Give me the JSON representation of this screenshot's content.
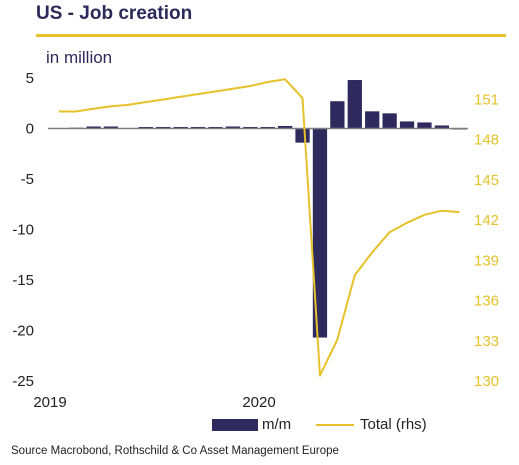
{
  "header": {
    "title": "US - Job creation",
    "unit": "in million"
  },
  "source": "Source Macrobond, Rothschild & Co Asset Management Europe",
  "legend": {
    "bars_label": "m/m",
    "line_label": "Total (rhs)"
  },
  "colors": {
    "bars": "#2e2a5e",
    "line": "#e6c12a",
    "accent_rule": "#e6c12a",
    "title": "#2b2a5a",
    "zero_line": "#808080"
  },
  "chart_data": {
    "type": "bar",
    "x_start": "2019-01",
    "x_labels": [
      "2019",
      "2020"
    ],
    "left_axis": {
      "ticks": [
        5,
        0,
        -5,
        -10,
        -15,
        -20,
        -25
      ],
      "ylim": [
        -25,
        5
      ]
    },
    "right_axis": {
      "ticks": [
        151,
        148,
        145,
        142,
        139,
        136,
        133,
        130
      ],
      "ylim": [
        130,
        152.6
      ]
    },
    "series": [
      {
        "name": "m/m",
        "type": "bar",
        "axis": "left",
        "x": [
          "2019-01",
          "2019-02",
          "2019-03",
          "2019-04",
          "2019-05",
          "2019-06",
          "2019-07",
          "2019-08",
          "2019-09",
          "2019-10",
          "2019-11",
          "2019-12",
          "2020-01",
          "2020-02",
          "2020-03",
          "2020-04",
          "2020-05",
          "2020-06",
          "2020-07",
          "2020-08",
          "2020-09",
          "2020-10",
          "2020-11",
          "2020-12"
        ],
        "values": [
          0.05,
          0.08,
          0.2,
          0.2,
          0.05,
          0.15,
          0.15,
          0.15,
          0.15,
          0.15,
          0.2,
          0.15,
          0.15,
          0.25,
          -1.4,
          -20.7,
          2.7,
          4.8,
          1.7,
          1.5,
          0.7,
          0.6,
          0.3,
          -0.1
        ]
      },
      {
        "name": "Total (rhs)",
        "type": "line",
        "axis": "right",
        "x": [
          "2019-01",
          "2019-02",
          "2019-03",
          "2019-04",
          "2019-05",
          "2019-06",
          "2019-07",
          "2019-08",
          "2019-09",
          "2019-10",
          "2019-11",
          "2019-12",
          "2020-01",
          "2020-02",
          "2020-03",
          "2020-04",
          "2020-05",
          "2020-06",
          "2020-07",
          "2020-08",
          "2020-09",
          "2020-10",
          "2020-11",
          "2020-12"
        ],
        "values": [
          150.1,
          150.1,
          150.3,
          150.5,
          150.6,
          150.8,
          151.0,
          151.2,
          151.4,
          151.6,
          151.8,
          152.0,
          152.3,
          152.5,
          151.1,
          130.4,
          133.1,
          137.9,
          139.6,
          141.1,
          141.8,
          142.4,
          142.7,
          142.6
        ]
      }
    ]
  }
}
